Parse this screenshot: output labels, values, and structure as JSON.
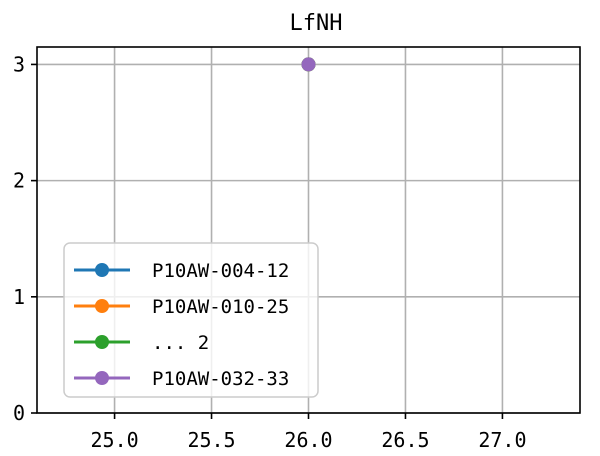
{
  "chart_data": {
    "type": "line",
    "title": "LfNH",
    "xlabel": "",
    "ylabel": "",
    "xlim": [
      24.6,
      27.4
    ],
    "ylim": [
      0,
      3.15
    ],
    "x_ticks": [
      25.0,
      25.5,
      26.0,
      26.5,
      27.0
    ],
    "x_tick_labels": [
      "25.0",
      "25.5",
      "26.0",
      "26.5",
      "27.0"
    ],
    "y_ticks": [
      0,
      1,
      2,
      3
    ],
    "y_tick_labels": [
      "0",
      "1",
      "2",
      "3"
    ],
    "grid": true,
    "legend_position": "lower-left",
    "series": [
      {
        "name": "P10AW-004-12",
        "color": "#1f77b4",
        "x": [
          26.0
        ],
        "y": [
          3
        ]
      },
      {
        "name": "P10AW-010-25",
        "color": "#ff7f0e",
        "x": [
          26.0
        ],
        "y": [
          3
        ]
      },
      {
        "name": "... 2",
        "color": "#2ca02c",
        "x": [
          26.0
        ],
        "y": [
          3
        ]
      },
      {
        "name": "P10AW-032-33",
        "color": "#9467bd",
        "x": [
          26.0
        ],
        "y": [
          3
        ]
      }
    ]
  }
}
